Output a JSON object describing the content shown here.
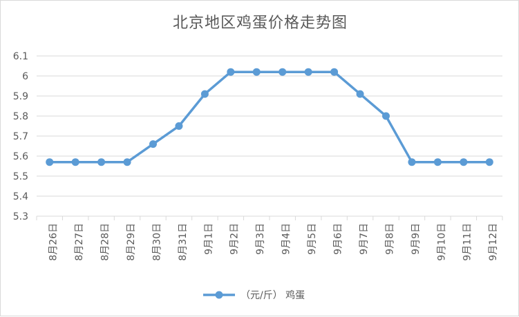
{
  "chart_data": {
    "type": "line",
    "title": "北京地区鸡蛋价格走势图",
    "xlabel": "",
    "ylabel": "",
    "categories": [
      "8月26日",
      "8月27日",
      "8月28日",
      "8月29日",
      "8月30日",
      "8月31日",
      "9月1日",
      "9月2日",
      "9月3日",
      "9月4日",
      "9月5日",
      "9月6日",
      "9月7日",
      "9月8日",
      "9月9日",
      "9月10日",
      "9月11日",
      "9月12日"
    ],
    "series": [
      {
        "name": "（元/斤） 鸡蛋",
        "values": [
          5.57,
          5.57,
          5.57,
          5.57,
          5.66,
          5.75,
          5.91,
          6.02,
          6.02,
          6.02,
          6.02,
          6.02,
          5.91,
          5.8,
          5.57,
          5.57,
          5.57,
          5.57
        ]
      }
    ],
    "ylim": [
      5.3,
      6.1
    ],
    "yticks": [
      "5.3",
      "5.4",
      "5.5",
      "5.6",
      "5.7",
      "5.8",
      "5.9",
      "6",
      "6.1"
    ],
    "grid": "horizontal",
    "legend_position": "bottom",
    "colors": {
      "series": "#5b9bd5",
      "grid": "#d9d9d9",
      "text": "#595959"
    }
  }
}
